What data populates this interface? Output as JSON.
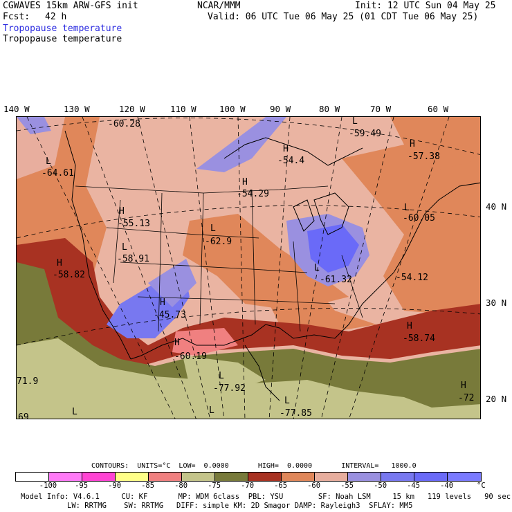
{
  "header": {
    "model": "CGWAVES 15km ARW-GFS init",
    "org": "NCAR/MMM",
    "init": "Init: 12 UTC Sun 04 May 25",
    "fcst_label": "Fcst:",
    "fcst_value": "42 h",
    "valid": "Valid: 06 UTC Tue 06 May 25 (01 CDT Tue 06 May 25)",
    "field_title_1": "Tropopause temperature",
    "field_title_2": "Tropopause temperature"
  },
  "axes": {
    "longitudes": [
      "140 W",
      "130 W",
      "120 W",
      "110 W",
      "100 W",
      "90 W",
      "80 W",
      "70 W",
      "60 W"
    ],
    "latitudes": [
      "40 N",
      "30 N",
      "20 N"
    ]
  },
  "map_labels": [
    {
      "name": "low-pacific-north",
      "marker": "",
      "value": "-60.28"
    },
    {
      "name": "low-pacific-west",
      "marker": "L",
      "value": "-64.61"
    },
    {
      "name": "low-hudson",
      "marker": "L",
      "value": "-59.49"
    },
    {
      "name": "high-manitoba",
      "marker": "H",
      "value": "-54.4"
    },
    {
      "name": "high-labrador",
      "marker": "H",
      "value": "-57.38"
    },
    {
      "name": "high-dakotas",
      "marker": "H",
      "value": "-54.29"
    },
    {
      "name": "high-idaho",
      "marker": "H",
      "value": "-55.13"
    },
    {
      "name": "low-nebraska",
      "marker": "L",
      "value": "-62.9"
    },
    {
      "name": "low-newengland",
      "marker": "L",
      "value": "-60.05"
    },
    {
      "name": "low-utah",
      "marker": "L",
      "value": "-58.91"
    },
    {
      "name": "high-california",
      "marker": "H",
      "value": "-58.82"
    },
    {
      "name": "high-newmexico",
      "marker": "H",
      "value": "-45.73"
    },
    {
      "name": "low-ohio-valley",
      "marker": "L",
      "value": "-61.32"
    },
    {
      "name": "low-atlantic",
      "marker": "",
      "value": "-54.12"
    },
    {
      "name": "high-mexico-north",
      "marker": "H",
      "value": "-60.19"
    },
    {
      "name": "high-atlantic-south",
      "marker": "H",
      "value": "-58.74"
    },
    {
      "name": "low-mexico-west-value",
      "marker": "",
      "value": "71.9"
    },
    {
      "name": "low-mexico-central",
      "marker": "L",
      "value": "-77.92"
    },
    {
      "name": "low-gulf-south",
      "marker": "L",
      "value": "-77.85"
    },
    {
      "name": "high-caribbean",
      "marker": "H",
      "value": "-72"
    },
    {
      "name": "low-bottom-left",
      "marker": "",
      "value": "69"
    },
    {
      "name": "low-bottom-left-2",
      "marker": "L",
      "value": ""
    },
    {
      "name": "low-bottom-center",
      "marker": "L",
      "value": ""
    }
  ],
  "colorbar": {
    "title": "CONTOURS:  UNITS=°C  LOW=  0.0000       HIGH=  0.0000       INTERVAL=   1000.0",
    "colors": [
      "#ffffff",
      "#ff7af7",
      "#ff44d4",
      "#ffff88",
      "#f08080",
      "#c4c48a",
      "#787a3a",
      "#a83222",
      "#e0875a",
      "#e8ae9e",
      "#9a90e0",
      "#7878f0",
      "#6a6af8",
      "#7a7aff"
    ],
    "labels": [
      "-100",
      "-95",
      "-90",
      "-85",
      "-80",
      "-75",
      "-70",
      "-65",
      "-60",
      "-55",
      "-50",
      "-45",
      "-40"
    ],
    "unit": "°C"
  },
  "footer": {
    "line1": "Model Info: V4.6.1     CU: KF       MP: WDM 6class  PBL: YSU        SF: Noah LSM     15 km   119 levels   90 sec",
    "line2": "LW: RRTMG    SW: RRTMG   DIFF: simple KM: 2D Smagor DAMP: Rayleigh3  SFLAY: MM5"
  }
}
